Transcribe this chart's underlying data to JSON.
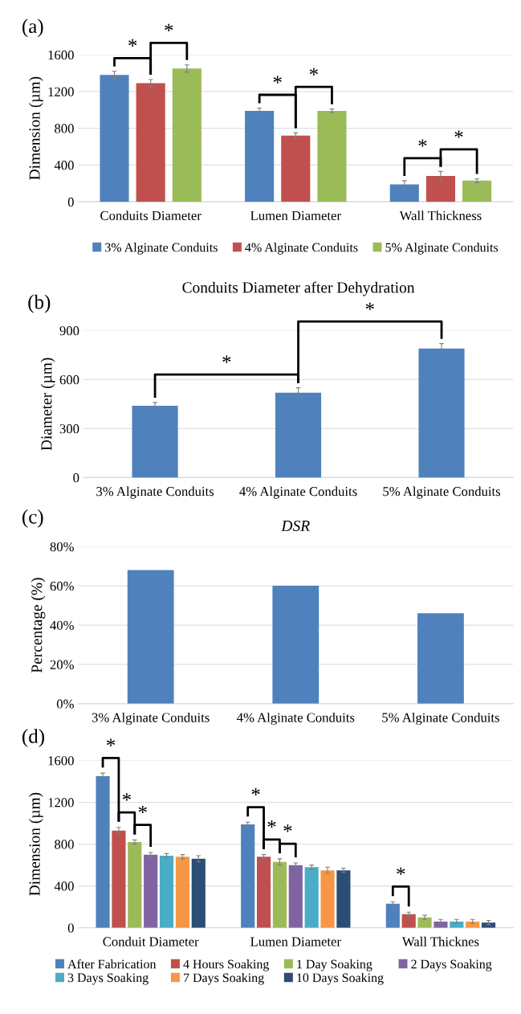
{
  "chart_data": [
    {
      "type": "bar",
      "ylabel": "Dimension (µm)",
      "categories": [
        "Conduits Diameter",
        "Lumen Diameter",
        "Wall Thickness"
      ],
      "series": [
        {
          "name": "3% Alginate Conduits",
          "color": "#4f81bd",
          "values": [
            1380,
            990,
            190
          ],
          "errors": [
            40,
            30,
            40
          ]
        },
        {
          "name": "4% Alginate Conduits",
          "color": "#c0504d",
          "values": [
            1290,
            720,
            280
          ],
          "errors": [
            40,
            30,
            50
          ]
        },
        {
          "name": "5% Alginate Conduits",
          "color": "#9bbb59",
          "values": [
            1450,
            990,
            230
          ],
          "errors": [
            40,
            20,
            20
          ]
        }
      ],
      "ylim": [
        0,
        1600
      ],
      "yticks": [
        0,
        400,
        800,
        1200,
        1600
      ],
      "grid": "y",
      "legend": "bottom",
      "annotations": [
        "(a)",
        "*",
        "*",
        "*",
        "*",
        "*",
        "*"
      ]
    },
    {
      "type": "bar",
      "title": "Conduits Diameter after Dehydration",
      "ylabel": "Diameter (µm)",
      "categories": [
        "3% Alginate Conduits",
        "4% Alginate Conduits",
        "5% Alginate Conduits"
      ],
      "values": [
        440,
        520,
        790
      ],
      "errors": [
        20,
        30,
        30
      ],
      "color": "#4f81bd",
      "ylim": [
        0,
        900
      ],
      "yticks": [
        0,
        300,
        600,
        900
      ],
      "grid": "y",
      "annotations": [
        "(b)",
        "*",
        "*"
      ]
    },
    {
      "type": "bar",
      "title": "DSR",
      "ylabel": "Percentage (%)",
      "categories": [
        "3% Alginate Conduits",
        "4% Alginate Conduits",
        "5% Alginate Conduits"
      ],
      "values": [
        68,
        60,
        46
      ],
      "color": "#4f81bd",
      "ylim": [
        0,
        80
      ],
      "yticks": [
        {
          "value": 0,
          "label": "0%"
        },
        {
          "value": 20,
          "label": "20%"
        },
        {
          "value": 40,
          "label": "40%"
        },
        {
          "value": 60,
          "label": "60%"
        },
        {
          "value": 80,
          "label": "80%"
        }
      ],
      "grid": "y",
      "annotations": [
        "(c)"
      ]
    },
    {
      "type": "bar",
      "ylabel": "Dimension (µm)",
      "categories": [
        "Conduit Diameter",
        "Lumen Diameter",
        "Wall Thicknes"
      ],
      "series": [
        {
          "name": "After Fabrication",
          "color": "#4f81bd",
          "values": [
            1450,
            990,
            230
          ],
          "errors": [
            30,
            20,
            20
          ]
        },
        {
          "name": "4 Hours Soaking",
          "color": "#c0504d",
          "values": [
            930,
            680,
            130
          ],
          "errors": [
            30,
            20,
            20
          ]
        },
        {
          "name": "1 Day Soaking",
          "color": "#9bbb59",
          "values": [
            820,
            630,
            100
          ],
          "errors": [
            20,
            30,
            20
          ]
        },
        {
          "name": "2 Days Soaking",
          "color": "#8064a2",
          "values": [
            700,
            600,
            60
          ],
          "errors": [
            20,
            20,
            20
          ]
        },
        {
          "name": "3 Days Soaking",
          "color": "#4bacc6",
          "values": [
            690,
            580,
            60
          ],
          "errors": [
            20,
            20,
            20
          ]
        },
        {
          "name": "7 Days Soaking",
          "color": "#f79646",
          "values": [
            680,
            550,
            60
          ],
          "errors": [
            20,
            30,
            20
          ]
        },
        {
          "name": "10 Days Soaking",
          "color": "#2c4d75",
          "values": [
            660,
            550,
            50
          ],
          "errors": [
            30,
            20,
            20
          ]
        }
      ],
      "ylim": [
        0,
        1600
      ],
      "yticks": [
        0,
        400,
        800,
        1200,
        1600
      ],
      "grid": "y",
      "legend": "bottom",
      "annotations": [
        "(d)",
        "*",
        "*",
        "*",
        "*",
        "*",
        "*",
        "*"
      ]
    }
  ]
}
